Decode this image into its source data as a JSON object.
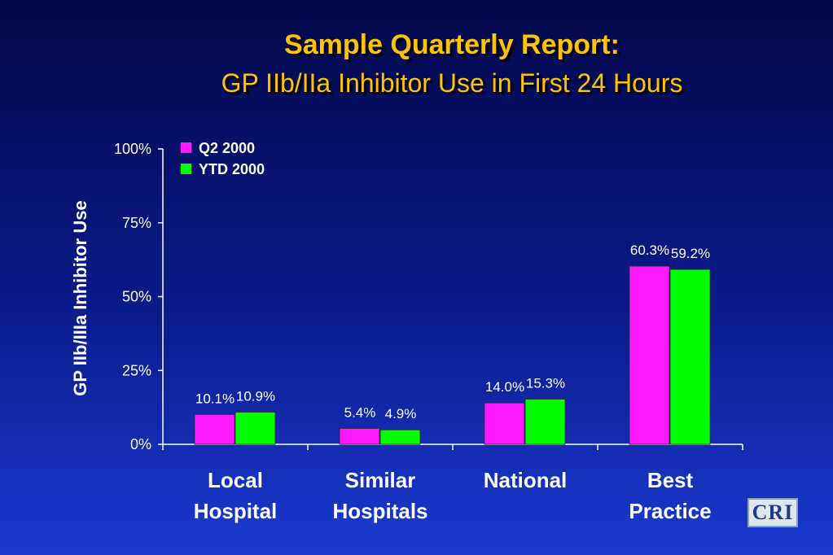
{
  "title": "Sample Quarterly Report:",
  "subtitle": "GP IIb/IIa Inhibitor Use in First 24 Hours",
  "logo_text": "CRI",
  "colors": {
    "q2": "#ff19ff",
    "ytd": "#00ff00",
    "title": "#ffc400"
  },
  "chart_data": {
    "type": "bar",
    "categories": [
      [
        "Local",
        "Hospital"
      ],
      [
        "Similar",
        "Hospitals"
      ],
      [
        "National"
      ],
      [
        "Best",
        "Practice"
      ]
    ],
    "series": [
      {
        "name": "Q2 2000",
        "values": [
          10.1,
          5.4,
          14.0,
          60.3
        ],
        "labels": [
          "10.1%",
          "5.4%",
          "14.0%",
          "60.3%"
        ]
      },
      {
        "name": "YTD 2000",
        "values": [
          10.9,
          4.9,
          15.3,
          59.2
        ],
        "labels": [
          "10.9%",
          "4.9%",
          "15.3%",
          "59.2%"
        ]
      }
    ],
    "ylabel": "GP IIb/IIIa Inhibitor Use",
    "ylim": [
      0,
      100
    ],
    "yticks": [
      "0%",
      "25%",
      "50%",
      "75%",
      "100%"
    ],
    "legend_position": "top-left",
    "grid": false
  }
}
